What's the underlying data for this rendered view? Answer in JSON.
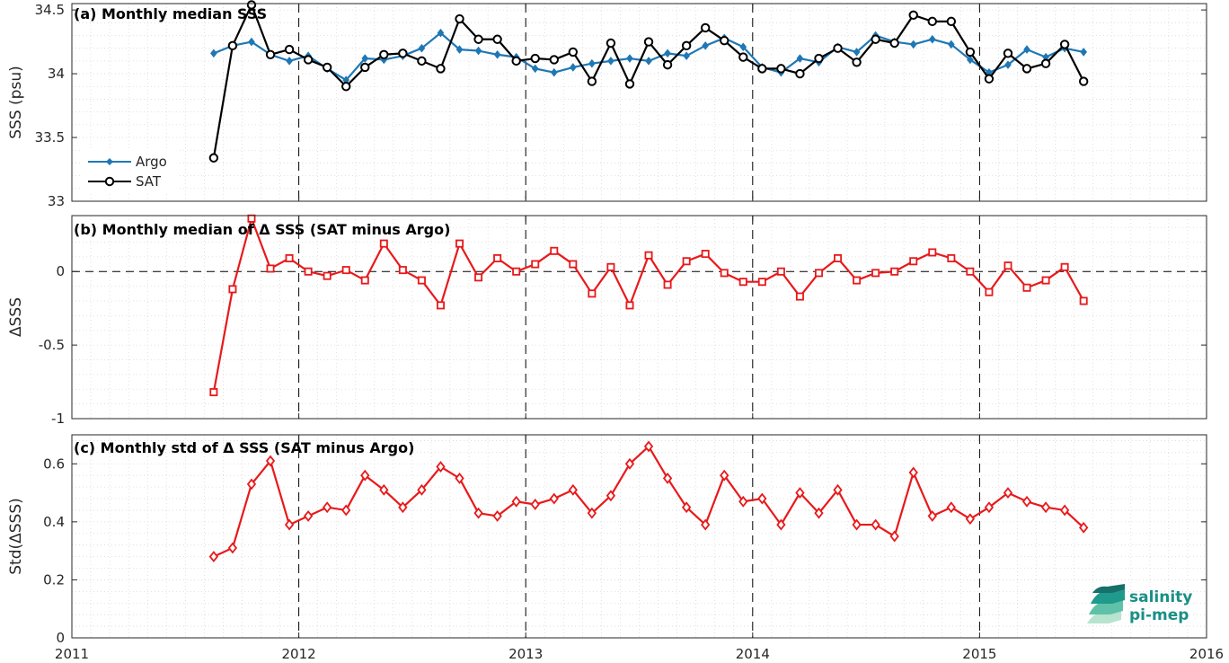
{
  "colors": {
    "argo": "#1f77b4",
    "sat": "#000000",
    "delta": "#e8191b",
    "logo": "#1a8f86"
  },
  "logo": {
    "line1": "salinity",
    "line2": "pi-mep"
  },
  "x_axis": {
    "ticks": [
      "2011",
      "2012",
      "2013",
      "2014",
      "2015",
      "2016"
    ]
  },
  "chart_data": [
    {
      "type": "line",
      "title": "(a) Monthly median SSS",
      "ylabel": "SSS (psu)",
      "xlim": [
        2011,
        2016
      ],
      "ylim": [
        33,
        34.55
      ],
      "yticks": [
        33,
        33.5,
        34,
        34.5
      ],
      "ytick_labels": [
        "33",
        "33.5",
        "34",
        "34.5"
      ],
      "grid": "on",
      "legend_position": "bottom-left",
      "x": [
        "2011-08",
        "2011-09",
        "2011-10",
        "2011-11",
        "2011-12",
        "2012-01",
        "2012-02",
        "2012-03",
        "2012-04",
        "2012-05",
        "2012-06",
        "2012-07",
        "2012-08",
        "2012-09",
        "2012-10",
        "2012-11",
        "2012-12",
        "2013-01",
        "2013-02",
        "2013-03",
        "2013-04",
        "2013-05",
        "2013-06",
        "2013-07",
        "2013-08",
        "2013-09",
        "2013-10",
        "2013-11",
        "2013-12",
        "2014-01",
        "2014-02",
        "2014-03",
        "2014-04",
        "2014-05",
        "2014-06",
        "2014-07",
        "2014-08",
        "2014-09",
        "2014-10",
        "2014-11",
        "2014-12",
        "2015-01",
        "2015-02",
        "2015-03",
        "2015-04",
        "2015-05",
        "2015-06"
      ],
      "series": [
        {
          "name": "Argo",
          "marker": "diamond",
          "values": [
            34.16,
            34.22,
            34.25,
            34.15,
            34.1,
            34.14,
            34.04,
            33.95,
            34.12,
            34.11,
            34.14,
            34.2,
            34.32,
            34.19,
            34.18,
            34.15,
            34.13,
            34.04,
            34.01,
            34.05,
            34.08,
            34.1,
            34.12,
            34.1,
            34.16,
            34.14,
            34.22,
            34.28,
            34.21,
            34.05,
            34.01,
            34.12,
            34.09,
            34.21,
            34.17,
            34.3,
            34.25,
            34.23,
            34.27,
            34.23,
            34.11,
            34.01,
            34.07,
            34.19,
            34.13,
            34.2,
            34.17
          ]
        },
        {
          "name": "SAT",
          "marker": "circle",
          "values": [
            33.34,
            34.22,
            34.54,
            34.15,
            34.19,
            34.11,
            34.05,
            33.9,
            34.05,
            34.15,
            34.16,
            34.1,
            34.04,
            34.43,
            34.27,
            34.27,
            34.1,
            34.12,
            34.11,
            34.17,
            33.94,
            34.24,
            33.92,
            34.25,
            34.07,
            34.22,
            34.36,
            34.26,
            34.13,
            34.04,
            34.04,
            34.0,
            34.12,
            34.2,
            34.09,
            34.27,
            34.24,
            34.46,
            34.41,
            34.41,
            34.17,
            33.96,
            34.16,
            34.04,
            34.08,
            34.23,
            33.94
          ]
        }
      ]
    },
    {
      "type": "line",
      "title": "(b) Monthly median of Δ SSS (SAT minus Argo)",
      "ylabel": "ΔSSS",
      "xlim": [
        2011,
        2016
      ],
      "ylim": [
        -1,
        0.38
      ],
      "yticks": [
        -1,
        -0.5,
        0
      ],
      "ytick_labels": [
        "-1",
        "-0.5",
        "0"
      ],
      "grid": "on",
      "x": [
        "2011-08",
        "2011-09",
        "2011-10",
        "2011-11",
        "2011-12",
        "2012-01",
        "2012-02",
        "2012-03",
        "2012-04",
        "2012-05",
        "2012-06",
        "2012-07",
        "2012-08",
        "2012-09",
        "2012-10",
        "2012-11",
        "2012-12",
        "2013-01",
        "2013-02",
        "2013-03",
        "2013-04",
        "2013-05",
        "2013-06",
        "2013-07",
        "2013-08",
        "2013-09",
        "2013-10",
        "2013-11",
        "2013-12",
        "2014-01",
        "2014-02",
        "2014-03",
        "2014-04",
        "2014-05",
        "2014-06",
        "2014-07",
        "2014-08",
        "2014-09",
        "2014-10",
        "2014-11",
        "2014-12",
        "2015-01",
        "2015-02",
        "2015-03",
        "2015-04",
        "2015-05",
        "2015-06"
      ],
      "series": [
        {
          "marker": "square",
          "values": [
            -0.82,
            -0.12,
            0.36,
            0.02,
            0.09,
            0.0,
            -0.03,
            0.01,
            -0.06,
            0.19,
            0.01,
            -0.06,
            -0.23,
            0.19,
            -0.04,
            0.09,
            0.0,
            0.05,
            0.14,
            0.05,
            -0.15,
            0.03,
            -0.23,
            0.11,
            -0.09,
            0.07,
            0.12,
            -0.01,
            -0.07,
            -0.07,
            0.0,
            -0.17,
            -0.01,
            0.09,
            -0.06,
            -0.01,
            0.0,
            0.07,
            0.13,
            0.09,
            0.0,
            -0.14,
            0.04,
            -0.11,
            -0.06,
            0.03,
            -0.2
          ]
        }
      ]
    },
    {
      "type": "line",
      "title": "(c) Monthly std of Δ SSS (SAT minus Argo)",
      "ylabel": "Std(ΔSSS)",
      "xlim": [
        2011,
        2016
      ],
      "ylim": [
        0,
        0.7
      ],
      "yticks": [
        0,
        0.2,
        0.4,
        0.6
      ],
      "ytick_labels": [
        "0",
        "0.2",
        "0.4",
        "0.6"
      ],
      "grid": "on",
      "x": [
        "2011-08",
        "2011-09",
        "2011-10",
        "2011-11",
        "2011-12",
        "2012-01",
        "2012-02",
        "2012-03",
        "2012-04",
        "2012-05",
        "2012-06",
        "2012-07",
        "2012-08",
        "2012-09",
        "2012-10",
        "2012-11",
        "2012-12",
        "2013-01",
        "2013-02",
        "2013-03",
        "2013-04",
        "2013-05",
        "2013-06",
        "2013-07",
        "2013-08",
        "2013-09",
        "2013-10",
        "2013-11",
        "2013-12",
        "2014-01",
        "2014-02",
        "2014-03",
        "2014-04",
        "2014-05",
        "2014-06",
        "2014-07",
        "2014-08",
        "2014-09",
        "2014-10",
        "2014-11",
        "2014-12",
        "2015-01",
        "2015-02",
        "2015-03",
        "2015-04",
        "2015-05",
        "2015-06"
      ],
      "series": [
        {
          "marker": "diamond",
          "values": [
            0.28,
            0.31,
            0.53,
            0.61,
            0.39,
            0.42,
            0.45,
            0.44,
            0.56,
            0.51,
            0.45,
            0.51,
            0.59,
            0.55,
            0.43,
            0.42,
            0.47,
            0.46,
            0.48,
            0.51,
            0.43,
            0.49,
            0.6,
            0.66,
            0.55,
            0.45,
            0.39,
            0.56,
            0.47,
            0.48,
            0.39,
            0.5,
            0.43,
            0.51,
            0.39,
            0.39,
            0.35,
            0.57,
            0.42,
            0.45,
            0.41,
            0.45,
            0.5,
            0.47,
            0.45,
            0.44,
            0.38
          ]
        }
      ]
    }
  ]
}
